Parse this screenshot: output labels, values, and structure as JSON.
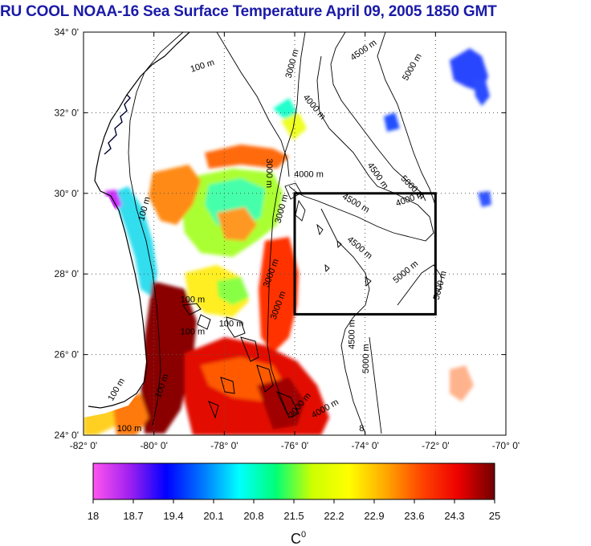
{
  "title": "RU COOL  NOAA-16 Sea Surface Temperature April 09, 2005 1850 GMT",
  "map": {
    "lon_range": [
      -82,
      -70
    ],
    "lat_range": [
      24,
      34
    ],
    "x_ticks": [
      "-82° 0'",
      "-80° 0'",
      "-78° 0'",
      "-76° 0'",
      "-74° 0'",
      "-72° 0'",
      "-70° 0'"
    ],
    "y_ticks": [
      "24° 0'",
      "26° 0'",
      "28° 0'",
      "30° 0'",
      "32° 0'",
      "34° 0'"
    ],
    "grid": "dotted",
    "study_box": {
      "lon": [
        -76,
        -72
      ],
      "lat": [
        27,
        30
      ]
    },
    "contour_labels": [
      {
        "text": "100 m",
        "lon": -78.6,
        "lat": 33.1,
        "rot": -18
      },
      {
        "text": "3000 m",
        "lon": -76.0,
        "lat": 33.2,
        "rot": -75
      },
      {
        "text": "4500 m",
        "lon": -74.0,
        "lat": 33.5,
        "rot": -35
      },
      {
        "text": "5000 m",
        "lon": -72.6,
        "lat": 33.1,
        "rot": -60
      },
      {
        "text": "4000 m",
        "lon": -75.5,
        "lat": 32.1,
        "rot": 50
      },
      {
        "text": "3000 m",
        "lon": -76.8,
        "lat": 30.5,
        "rot": 90
      },
      {
        "text": "4000 m",
        "lon": -75.6,
        "lat": 30.4,
        "rot": 0
      },
      {
        "text": "4500 m",
        "lon": -73.7,
        "lat": 30.4,
        "rot": 55
      },
      {
        "text": "5000 m",
        "lon": -72.7,
        "lat": 30.1,
        "rot": 45
      },
      {
        "text": "4000 m",
        "lon": -72.7,
        "lat": 29.8,
        "rot": -20
      },
      {
        "text": "100 m",
        "lon": -80.2,
        "lat": 29.6,
        "rot": -75
      },
      {
        "text": "3000 m",
        "lon": -76.3,
        "lat": 29.6,
        "rot": -75
      },
      {
        "text": "4500 m",
        "lon": -74.3,
        "lat": 29.7,
        "rot": 30
      },
      {
        "text": "4500 m",
        "lon": -74.2,
        "lat": 28.6,
        "rot": 40
      },
      {
        "text": "5000 m",
        "lon": -72.8,
        "lat": 28.0,
        "rot": -40
      },
      {
        "text": "5000 m",
        "lon": -71.8,
        "lat": 27.7,
        "rot": -75
      },
      {
        "text": "3000 m",
        "lon": -76.6,
        "lat": 28.0,
        "rot": -70
      },
      {
        "text": "100 m",
        "lon": -78.9,
        "lat": 27.3,
        "rot": 0
      },
      {
        "text": "3000 m",
        "lon": -76.4,
        "lat": 27.2,
        "rot": -70
      },
      {
        "text": "100 m",
        "lon": -77.8,
        "lat": 26.7,
        "rot": 0
      },
      {
        "text": "100 m",
        "lon": -78.9,
        "lat": 26.5,
        "rot": 0
      },
      {
        "text": "4500 m",
        "lon": -74.3,
        "lat": 26.5,
        "rot": -90
      },
      {
        "text": "5000 m",
        "lon": -73.9,
        "lat": 25.9,
        "rot": -90
      },
      {
        "text": "100 m",
        "lon": -79.7,
        "lat": 25.2,
        "rot": -70
      },
      {
        "text": "100 m",
        "lon": -81.0,
        "lat": 25.1,
        "rot": -60
      },
      {
        "text": "3000 m",
        "lon": -75.8,
        "lat": 24.7,
        "rot": -50
      },
      {
        "text": "4000 m",
        "lon": -75.1,
        "lat": 24.6,
        "rot": -30
      },
      {
        "text": "100 m",
        "lon": -80.7,
        "lat": 24.1,
        "rot": 0
      },
      {
        "text": "8",
        "lon": -74.1,
        "lat": 24.1,
        "rot": 0
      }
    ]
  },
  "colorbar": {
    "unit": "C",
    "unit_sup": "0",
    "range": [
      18,
      25
    ],
    "ticks": [
      "18",
      "18.7",
      "19.4",
      "20.1",
      "20.8",
      "21.5",
      "22.2",
      "22.9",
      "23.6",
      "24.3",
      "25"
    ],
    "colors": [
      "#ff55ee",
      "#a020f0",
      "#0000ff",
      "#0077ff",
      "#00ffff",
      "#00ff77",
      "#ccff00",
      "#ffff00",
      "#ffaa00",
      "#ff4400",
      "#ee0000",
      "#700000"
    ]
  }
}
